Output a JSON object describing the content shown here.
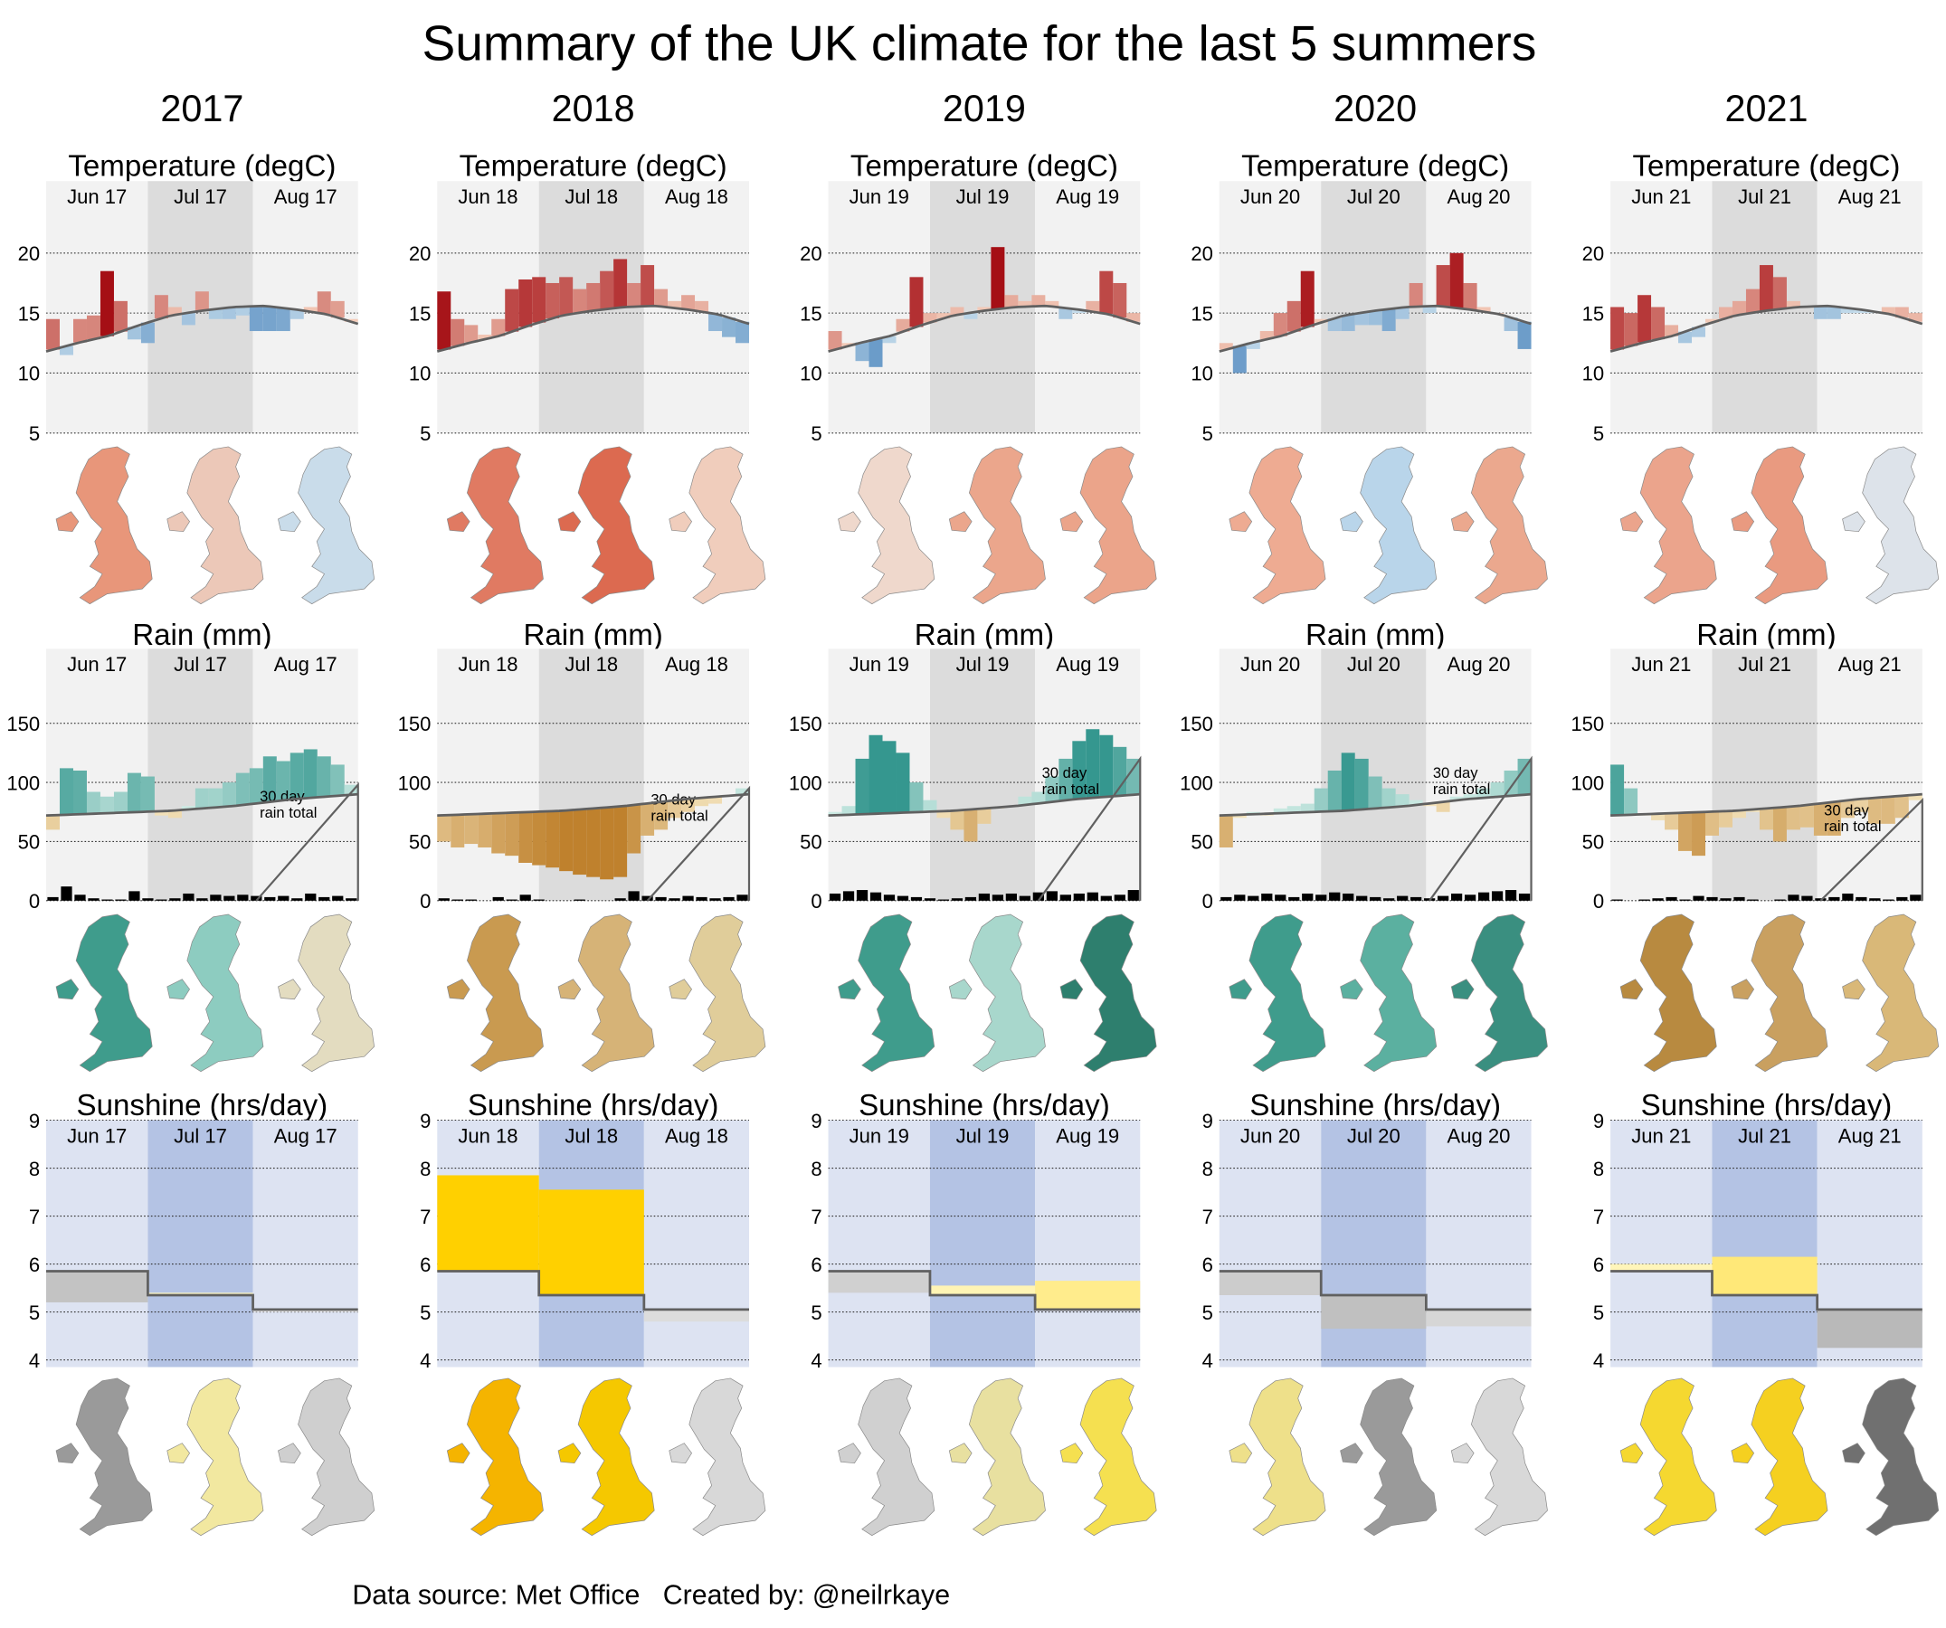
{
  "chart_data": {
    "type": "small-multiples",
    "title": "Summary of the UK climate for the last 5 summers",
    "footer": "Data source: Met Office   Created by: @neilrkaye",
    "panels": {
      "temperature": {
        "type": "bar",
        "title": "Temperature (degC)",
        "yticks": [
          5,
          10,
          15,
          20
        ],
        "ylim": [
          5,
          26
        ],
        "normal": [
          11.8,
          12.5,
          13.1,
          14.0,
          14.8,
          15.2,
          15.5,
          15.6,
          15.3,
          14.9,
          14.1
        ],
        "colors": {
          "warm_low": "#f7d4c0",
          "warm_high": "#a50f15",
          "cool_low": "#d1e5f0",
          "cool_high": "#2166ac",
          "normal_line": "#606060",
          "bg": "#f2f2f2",
          "bg_jul": "#dcdcdc"
        }
      },
      "rain": {
        "type": "area",
        "title": "Rain (mm)",
        "yticks": [
          0,
          50,
          100,
          150
        ],
        "ylim": [
          0,
          213
        ],
        "normal": [
          72,
          73,
          74,
          75,
          76,
          78,
          80,
          83,
          86,
          88,
          90
        ],
        "annotation": [
          "30 day",
          "rain total"
        ],
        "colors": {
          "wet_low": "#d5efe8",
          "wet_high": "#35978f",
          "dry_low": "#f6e8c3",
          "dry_high": "#bf812d",
          "daily": "#000000",
          "normal_line": "#606060",
          "bg": "#f2f2f2",
          "bg_jul": "#dcdcdc"
        }
      },
      "sunshine": {
        "type": "bar",
        "title": "Sunshine (hrs/day)",
        "yticks": [
          4,
          5,
          6,
          7,
          8,
          9
        ],
        "ylim": [
          3.85,
          9
        ],
        "normal": [
          5.85,
          5.35,
          5.05
        ],
        "colors": {
          "sunny_low": "#fff8c8",
          "sunny_high": "#ffd000",
          "dull_low": "#ececec",
          "dull_high": "#a0a0a0",
          "normal_line": "#606060",
          "bg": "#dde3f2",
          "bg_jul": "#b4c3e4"
        }
      }
    },
    "years": [
      {
        "year": "2017",
        "months": [
          "Jun 17",
          "Jul 17",
          "Aug 17"
        ],
        "temperature": [
          14.5,
          11.5,
          14.5,
          14.8,
          18.5,
          16.0,
          12.8,
          12.5,
          16.5,
          15.5,
          14.0,
          16.8,
          14.5,
          14.5,
          14.8,
          13.5,
          13.5,
          13.5,
          14.5,
          15.5,
          16.8,
          16.0,
          14.5
        ],
        "rain_30day": [
          60,
          112,
          110,
          92,
          88,
          92,
          108,
          105,
          72,
          70,
          80,
          95,
          95,
          100,
          108,
          112,
          122,
          118,
          125,
          128,
          122,
          115,
          98
        ],
        "rain_daily": [
          3,
          12,
          5,
          2,
          1,
          1,
          8,
          2,
          1,
          2,
          6,
          2,
          5,
          4,
          5,
          4,
          3,
          4,
          2,
          6,
          3,
          4,
          2
        ],
        "sunshine": [
          5.2,
          5.4,
          5.0
        ],
        "maps": {
          "temperature": [
            "#e8967a",
            "#ecc8b8",
            "#c9dcea"
          ],
          "rain": [
            "#3f9c8c",
            "#8dccc0",
            "#e3dcc0"
          ],
          "sunshine": [
            "#9a9a9a",
            "#f2e8a0",
            "#cfcfcf"
          ]
        }
      },
      {
        "year": "2018",
        "months": [
          "Jun 18",
          "Jul 18",
          "Aug 18"
        ],
        "temperature": [
          16.8,
          14.5,
          14.0,
          13.2,
          14.5,
          17.0,
          17.8,
          18.0,
          17.5,
          18.0,
          17.0,
          17.5,
          18.5,
          19.5,
          17.5,
          19.0,
          17.0,
          16.0,
          16.5,
          16.0,
          13.5,
          13.0,
          12.5
        ],
        "rain_30day": [
          50,
          45,
          48,
          45,
          40,
          38,
          32,
          30,
          28,
          25,
          22,
          20,
          18,
          20,
          40,
          55,
          60,
          70,
          75,
          80,
          82,
          88,
          95
        ],
        "rain_daily": [
          2,
          1,
          1,
          0,
          3,
          1,
          5,
          1,
          0,
          0,
          1,
          0,
          0,
          2,
          8,
          4,
          3,
          2,
          4,
          3,
          2,
          3,
          5
        ],
        "sunshine": [
          7.85,
          7.55,
          4.8
        ],
        "maps": {
          "temperature": [
            "#e07a62",
            "#dc6a50",
            "#f0cdbc"
          ],
          "rain": [
            "#c99a50",
            "#d6b377",
            "#e0cd9a"
          ],
          "sunshine": [
            "#f5b400",
            "#f5c800",
            "#d8d8d8"
          ]
        }
      },
      {
        "year": "2019",
        "months": [
          "Jun 19",
          "Jul 19",
          "Aug 19"
        ],
        "temperature": [
          13.5,
          12.5,
          11.0,
          10.5,
          12.5,
          14.5,
          18.0,
          15.0,
          15.0,
          15.5,
          14.5,
          15.5,
          20.5,
          16.5,
          16.0,
          16.5,
          16.0,
          14.5,
          15.0,
          16.0,
          18.5,
          17.5,
          15.0
        ],
        "rain_30day": [
          75,
          80,
          120,
          140,
          135,
          125,
          100,
          85,
          70,
          60,
          50,
          65,
          78,
          80,
          88,
          92,
          105,
          120,
          135,
          145,
          140,
          130,
          120
        ],
        "rain_daily": [
          6,
          8,
          9,
          7,
          5,
          4,
          3,
          2,
          1,
          2,
          3,
          6,
          5,
          6,
          4,
          7,
          8,
          5,
          6,
          7,
          4,
          5,
          9
        ],
        "sunshine": [
          5.4,
          5.55,
          5.65
        ],
        "maps": {
          "temperature": [
            "#efd8cc",
            "#eba68c",
            "#eba48a"
          ],
          "rain": [
            "#3f9c8c",
            "#a8d7cc",
            "#2e7f6e"
          ],
          "sunshine": [
            "#d0d0d0",
            "#e8e0a0",
            "#f5e050"
          ]
        }
      },
      {
        "year": "2020",
        "months": [
          "Jun 20",
          "Jul 20",
          "Aug 20"
        ],
        "temperature": [
          12.5,
          10.0,
          12.0,
          13.5,
          15.0,
          16.0,
          18.5,
          14.5,
          13.5,
          13.5,
          14.0,
          14.0,
          13.5,
          14.5,
          17.5,
          15.0,
          19.0,
          20.0,
          17.5,
          15.5,
          15.0,
          13.5,
          12.0
        ],
        "rain_30day": [
          45,
          70,
          75,
          72,
          78,
          80,
          82,
          95,
          110,
          125,
          120,
          105,
          95,
          90,
          85,
          80,
          75,
          88,
          90,
          95,
          100,
          110,
          120
        ],
        "rain_daily": [
          3,
          5,
          4,
          6,
          5,
          3,
          6,
          5,
          7,
          6,
          4,
          3,
          2,
          4,
          3,
          2,
          4,
          6,
          5,
          7,
          8,
          9,
          6
        ],
        "sunshine": [
          5.35,
          4.65,
          4.7
        ],
        "maps": {
          "temperature": [
            "#eeab92",
            "#b9d5ea",
            "#eba88e"
          ],
          "rain": [
            "#3f9c8c",
            "#5bb0a0",
            "#3a8f80"
          ],
          "sunshine": [
            "#eee08a",
            "#9a9a9a",
            "#d8d8d8"
          ]
        }
      },
      {
        "year": "2021",
        "months": [
          "Jun 21",
          "Jul 21",
          "Aug 21"
        ],
        "temperature": [
          15.5,
          15.0,
          16.5,
          15.5,
          14.0,
          12.5,
          13.0,
          14.5,
          15.5,
          16.0,
          17.0,
          19.0,
          18.0,
          16.0,
          15.5,
          14.5,
          14.5,
          15.0,
          15.0,
          15.0,
          15.5,
          15.5,
          15.0
        ],
        "rain_30day": [
          115,
          95,
          72,
          68,
          60,
          42,
          38,
          55,
          62,
          70,
          75,
          60,
          50,
          60,
          62,
          55,
          55,
          70,
          75,
          65,
          65,
          70,
          85
        ],
        "rain_daily": [
          1,
          0,
          1,
          2,
          3,
          1,
          4,
          3,
          2,
          3,
          1,
          0,
          1,
          5,
          4,
          2,
          3,
          6,
          3,
          2,
          1,
          3,
          5
        ],
        "sunshine": [
          6.0,
          6.15,
          4.25
        ],
        "maps": {
          "temperature": [
            "#eba48c",
            "#e99a80",
            "#dde3ea"
          ],
          "rain": [
            "#b88a40",
            "#c9a060",
            "#d9b878"
          ],
          "sunshine": [
            "#f5d830",
            "#f5d020",
            "#707070"
          ]
        }
      }
    ]
  }
}
